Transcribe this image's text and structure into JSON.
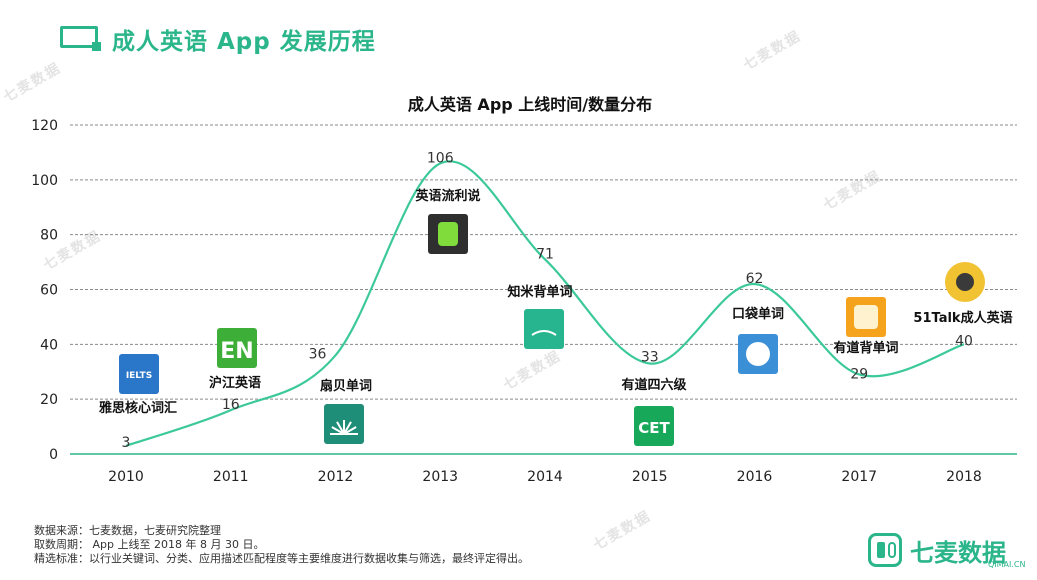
{
  "header": {
    "title": "成人英语 App 发展历程"
  },
  "watermark": {
    "text": "七麦数据"
  },
  "chart_data": {
    "type": "line",
    "title": "成人英语 App 上线时间/数量分布",
    "categories": [
      "2010",
      "2011",
      "2012",
      "2013",
      "2014",
      "2015",
      "2016",
      "2017",
      "2018"
    ],
    "values": [
      3,
      16,
      36,
      106,
      71,
      33,
      62,
      29,
      40
    ],
    "ylim": [
      0,
      120
    ],
    "yticks": [
      0,
      20,
      40,
      60,
      80,
      100,
      120
    ],
    "grid": true,
    "line_color": "#3cc99a",
    "apps": [
      {
        "year": "2010",
        "name": "雅思核心词汇",
        "icon": "ielts-icon"
      },
      {
        "year": "2011",
        "name": "沪江英语",
        "icon": "en-icon"
      },
      {
        "year": "2012",
        "name": "扇贝单词",
        "icon": "shanbay-icon"
      },
      {
        "year": "2013",
        "name": "英语流利说",
        "icon": "liulishuo-icon"
      },
      {
        "year": "2014",
        "name": "知米背单词",
        "icon": "zhimi-icon"
      },
      {
        "year": "2015",
        "name": "有道四六级",
        "icon": "cet-icon"
      },
      {
        "year": "2016",
        "name": "口袋单词",
        "icon": "koudai-icon"
      },
      {
        "year": "2017",
        "name": "有道背单词",
        "icon": "youdao-icon"
      },
      {
        "year": "2018",
        "name": "51Talk成人英语",
        "icon": "51talk-icon"
      }
    ]
  },
  "footer": {
    "line1": "数据来源：七麦数据，七麦研究院整理",
    "line2": "取数周期：  App 上线至 2018 年 8 月 30 日。",
    "line3": "精选标准：以行业关键词、分类、应用描述匹配程度等主要维度进行数据收集与筛选，最终评定得出。"
  },
  "logo": {
    "text": "七麦数据",
    "sub": "QIMAI.CN"
  },
  "colors": {
    "accent": "#2bb58a",
    "line": "#3cc99a",
    "grid": "#8a8a8a"
  }
}
